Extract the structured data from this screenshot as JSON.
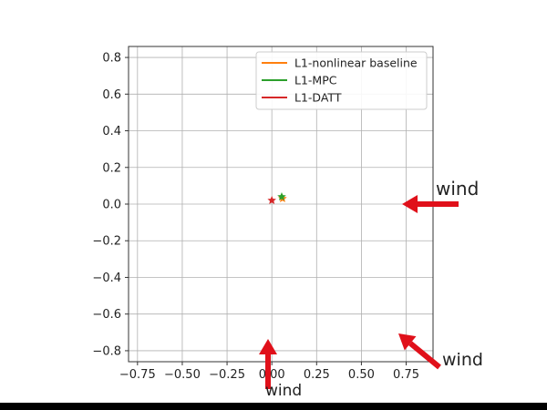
{
  "chart_data": {
    "type": "scatter",
    "xlim": [
      -0.8,
      0.9
    ],
    "ylim": [
      -0.86,
      0.86
    ],
    "x_ticks": [
      -0.75,
      -0.5,
      -0.25,
      0.0,
      0.25,
      0.5,
      0.75
    ],
    "x_tick_labels": [
      "−0.75",
      "−0.50",
      "−0.25",
      "0.00",
      "0.25",
      "0.50",
      "0.75"
    ],
    "y_ticks": [
      0.8,
      0.6,
      0.4,
      0.2,
      0.0,
      -0.2,
      -0.4,
      -0.6,
      -0.8
    ],
    "y_tick_labels": [
      "0.8",
      "0.6",
      "0.4",
      "0.2",
      "0.0",
      "−0.2",
      "−0.4",
      "−0.6",
      "−0.8"
    ],
    "grid": true,
    "legend_position": "top-right",
    "series": [
      {
        "name": "L1-nonlinear baseline",
        "color": "#ff7f0e",
        "points": [
          [
            0.06,
            0.03
          ]
        ],
        "marker": "star"
      },
      {
        "name": "L1-MPC",
        "color": "#2ca02c",
        "points": [
          [
            0.055,
            0.04
          ]
        ],
        "marker": "star"
      },
      {
        "name": "L1-DATT",
        "color": "#d62728",
        "points": [
          [
            0.0,
            0.02
          ]
        ],
        "marker": "star"
      }
    ]
  },
  "annotations": {
    "wind_labels": [
      "wind",
      "wind",
      "wind"
    ],
    "arrow_color": "#e0101a"
  }
}
